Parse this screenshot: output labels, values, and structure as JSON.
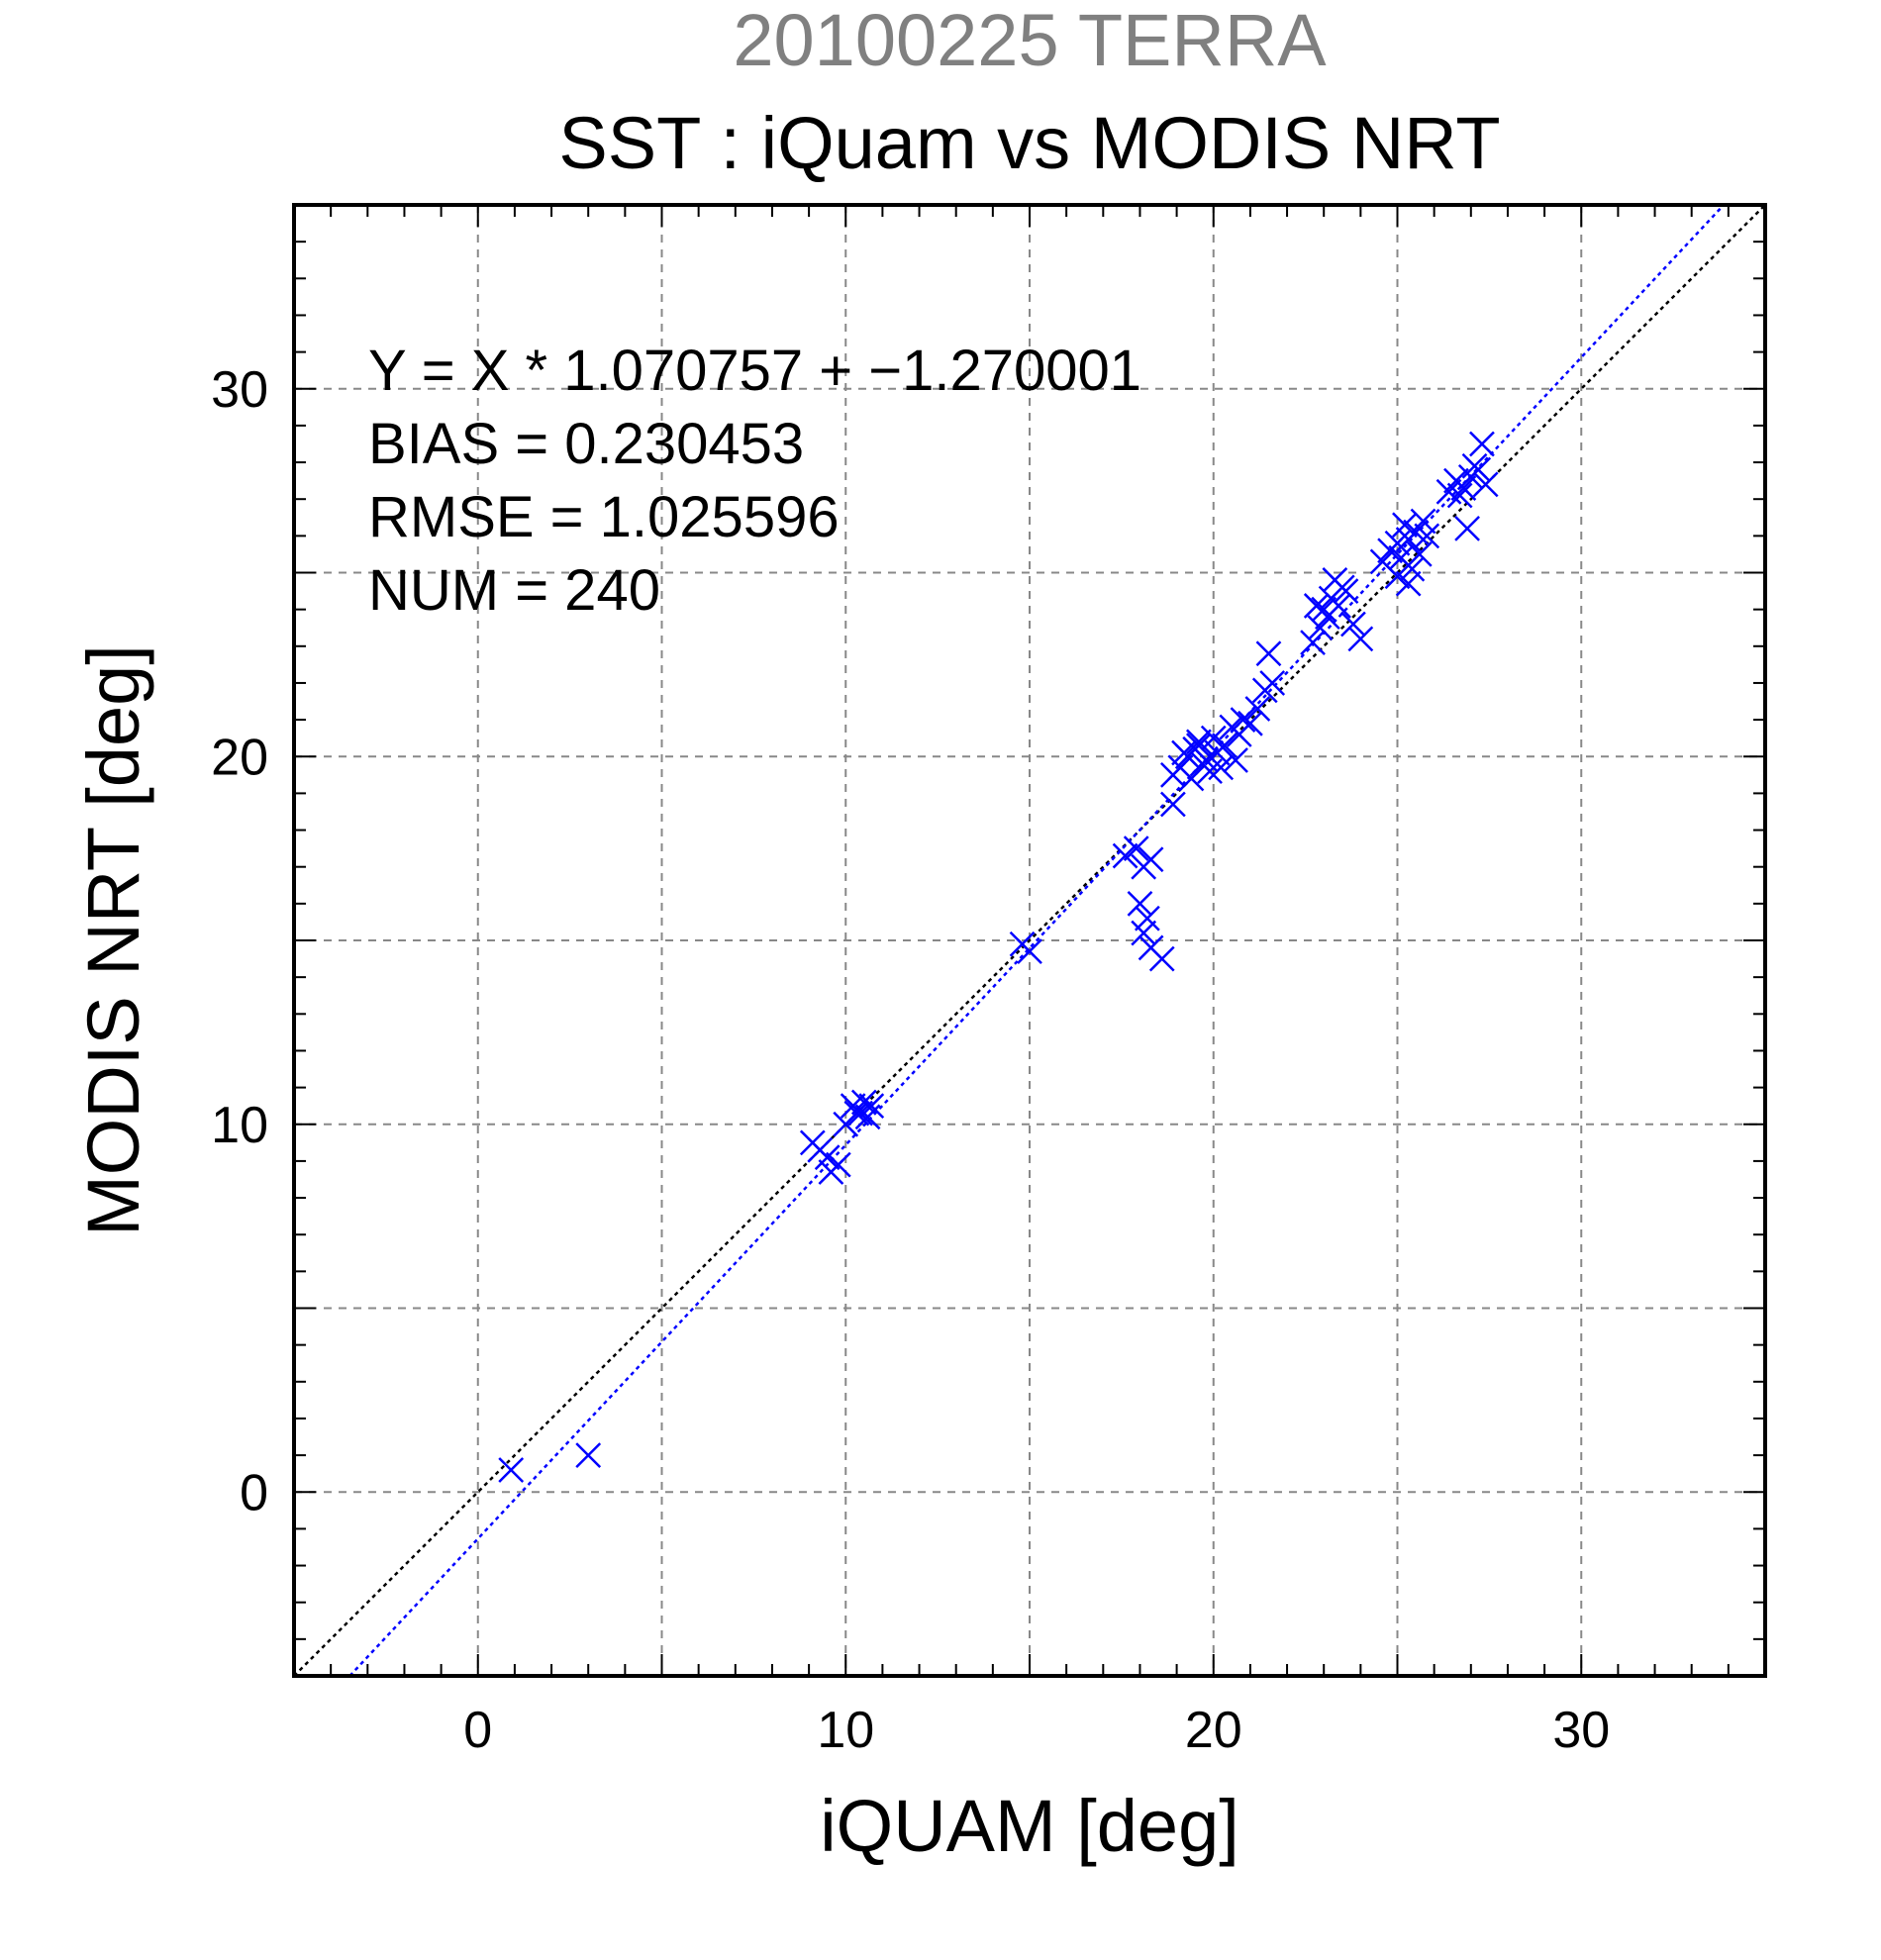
{
  "chart_data": {
    "type": "scatter",
    "suptitle": "20100225 TERRA",
    "title": "SST : iQuam vs MODIS NRT",
    "xlabel": "iQUAM [deg]",
    "ylabel": "MODIS NRT [deg]",
    "xlim": [
      -5,
      35
    ],
    "ylim": [
      -5,
      35
    ],
    "major_ticks": [
      0,
      10,
      20,
      30
    ],
    "tick_labels": [
      "0",
      "10",
      "20",
      "30"
    ],
    "grid_step": 5,
    "grid": true,
    "annotations": [
      "Y = X * 1.070757 + −1.270001",
      "BIAS = 0.230453",
      "RMSE = 1.025596",
      "NUM = 240"
    ],
    "colors": {
      "points": "#0000ff",
      "fit_line": "#0000ff",
      "identity_line": "#000000",
      "grid": "#888888"
    },
    "fit": {
      "slope": 1.070757,
      "intercept": -1.270001
    },
    "identity": {
      "slope": 1,
      "intercept": 0
    },
    "series": [
      {
        "marker": "x",
        "x": [
          0.9,
          3.0,
          9.1,
          9.3,
          9.5,
          9.8,
          9.6,
          10.0,
          10.2,
          10.4,
          10.6,
          10.7,
          10.3,
          10.5,
          14.8,
          15.0,
          17.6,
          17.9,
          18.1,
          18.3,
          18.0,
          18.2,
          18.1,
          18.3,
          18.6,
          18.9,
          18.9,
          19.1,
          19.3,
          19.5,
          19.6,
          19.7,
          19.8,
          20.0,
          20.1,
          20.3,
          20.5,
          20.7,
          20.8,
          19.9,
          19.4,
          19.2,
          19.6,
          20.2,
          20.6,
          21.0,
          21.2,
          21.4,
          21.6,
          21.5,
          22.7,
          22.9,
          23.0,
          23.2,
          23.4,
          23.6,
          23.1,
          23.3,
          23.8,
          24.0,
          22.8,
          23.5,
          24.6,
          24.8,
          25.0,
          25.1,
          25.3,
          25.5,
          25.2,
          25.4,
          25.6,
          25.8,
          25.0,
          25.3,
          25.7,
          26.4,
          26.6,
          26.8,
          27.0,
          27.2,
          27.4,
          26.7,
          27.1,
          26.9,
          27.3
        ],
        "y": [
          0.6,
          1.0,
          9.5,
          9.3,
          9.1,
          8.9,
          8.7,
          10.0,
          10.5,
          10.3,
          10.2,
          10.5,
          10.3,
          10.6,
          14.9,
          14.7,
          17.3,
          17.5,
          17.0,
          17.2,
          16.0,
          15.6,
          15.2,
          14.8,
          14.5,
          18.7,
          19.5,
          19.7,
          20.0,
          20.2,
          20.4,
          19.8,
          19.9,
          20.5,
          20.1,
          20.3,
          20.8,
          20.6,
          21.0,
          19.6,
          19.4,
          20.1,
          20.3,
          19.7,
          19.9,
          20.9,
          21.3,
          21.8,
          22.0,
          22.8,
          23.1,
          23.5,
          24.0,
          24.3,
          24.1,
          24.5,
          23.8,
          24.8,
          23.6,
          23.2,
          24.1,
          24.6,
          25.3,
          25.6,
          25.8,
          25.4,
          25.9,
          26.1,
          26.3,
          25.1,
          25.5,
          26.0,
          24.9,
          24.7,
          26.4,
          27.2,
          27.5,
          27.3,
          27.6,
          27.8,
          27.4,
          27.1,
          27.9,
          26.2,
          28.5
        ]
      }
    ]
  }
}
